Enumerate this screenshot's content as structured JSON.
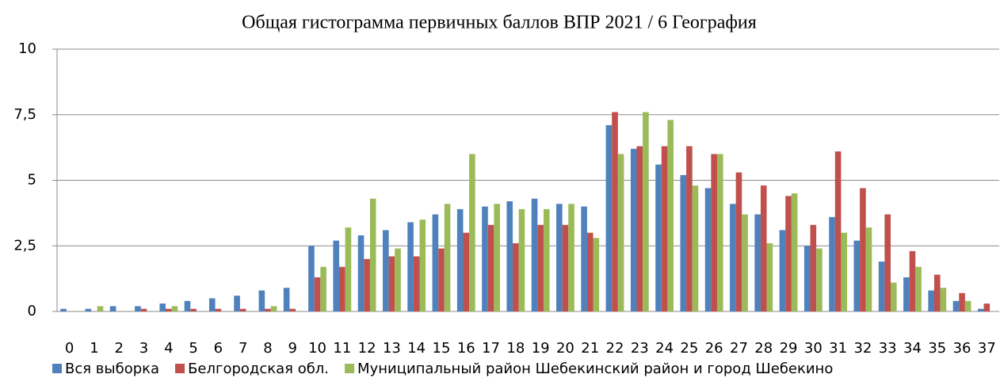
{
  "chart_data": {
    "type": "bar",
    "title": "Общая гистограмма первичных баллов ВПР 2021 / 6 География",
    "categories": [
      "0",
      "1",
      "2",
      "3",
      "4",
      "5",
      "6",
      "7",
      "8",
      "9",
      "10",
      "11",
      "12",
      "13",
      "14",
      "15",
      "16",
      "17",
      "18",
      "19",
      "20",
      "21",
      "22",
      "23",
      "24",
      "25",
      "26",
      "27",
      "28",
      "29",
      "30",
      "31",
      "32",
      "33",
      "34",
      "35",
      "36",
      "37"
    ],
    "series": [
      {
        "name": "Вся выборка",
        "color": "#4f81bd",
        "values": [
          0.1,
          0.1,
          0.2,
          0.2,
          0.3,
          0.4,
          0.5,
          0.6,
          0.8,
          0.9,
          2.5,
          2.7,
          2.9,
          3.1,
          3.4,
          3.7,
          3.9,
          4.0,
          4.2,
          4.3,
          4.1,
          4.0,
          7.1,
          6.2,
          5.6,
          5.2,
          4.7,
          4.1,
          3.7,
          3.1,
          2.5,
          3.6,
          2.7,
          1.9,
          1.3,
          0.8,
          0.4,
          0.1
        ]
      },
      {
        "name": "Белгородская обл.",
        "color": "#c0504d",
        "values": [
          0,
          0,
          0,
          0.1,
          0.1,
          0.1,
          0.1,
          0.1,
          0.1,
          0.1,
          1.3,
          1.7,
          2.0,
          2.1,
          2.1,
          2.4,
          3.0,
          3.3,
          2.6,
          3.3,
          3.3,
          3.0,
          7.6,
          6.3,
          6.3,
          6.3,
          6.0,
          5.3,
          4.8,
          4.4,
          3.3,
          6.1,
          4.7,
          3.7,
          2.3,
          1.4,
          0.7,
          0.3
        ]
      },
      {
        "name": "Муниципальный район Шебекинский район и город Шебекино",
        "color": "#9bbb59",
        "values": [
          0,
          0.2,
          0,
          0,
          0.2,
          0,
          0,
          0,
          0.2,
          0,
          1.7,
          3.2,
          4.3,
          2.4,
          3.5,
          4.1,
          6.0,
          4.1,
          3.9,
          3.9,
          4.1,
          2.8,
          6.0,
          7.6,
          7.3,
          4.8,
          6.0,
          3.7,
          2.6,
          4.5,
          2.4,
          3.0,
          3.2,
          1.1,
          1.7,
          0.9,
          0.4,
          0
        ]
      }
    ],
    "ylim": [
      0,
      10
    ],
    "yticks": [
      0,
      {
        "value": 2.5,
        "label": "2,5"
      },
      5,
      {
        "value": 7.5,
        "label": "7,5"
      },
      10
    ],
    "grid": true
  }
}
